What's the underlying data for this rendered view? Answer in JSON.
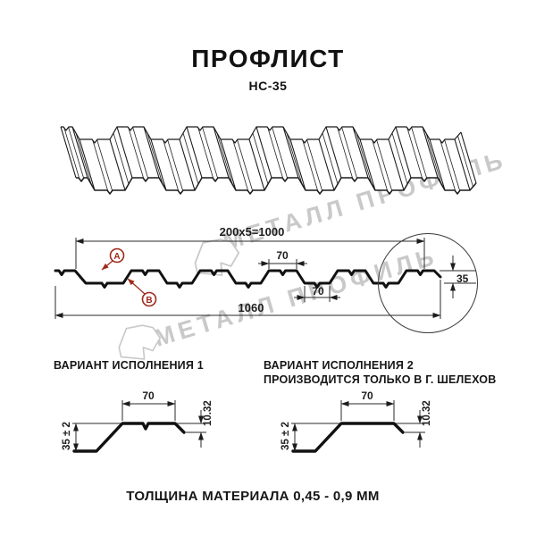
{
  "header": {
    "title": "ПРОФЛИСТ",
    "subtitle": "НС-35"
  },
  "watermark": {
    "text": "МЕТАЛЛ ПРОФИЛЬ",
    "color": "#c9c9c9"
  },
  "cross_section": {
    "dim_top_total": "200x5=1000",
    "dim_rib_top": "70",
    "dim_rib_bottom": "70",
    "dim_bottom_total": "1060",
    "dim_height": "35",
    "marker_a": "А",
    "marker_b": "В",
    "marker_color": "#9e2a1c"
  },
  "variant1": {
    "title": "ВАРИАНТ ИСПОЛНЕНИЯ 1",
    "dim_width": "70",
    "dim_lip": "10.32",
    "dim_height": "35 ± 2"
  },
  "variant2": {
    "title": "ВАРИАНТ ИСПОЛНЕНИЯ 2",
    "subtitle": "ПРОИЗВОДИТСЯ ТОЛЬКО В Г. ШЕЛЕХОВ",
    "dim_width": "70",
    "dim_lip": "10.32",
    "dim_height": "35 ± 2"
  },
  "footer": {
    "note": "ТОЛЩИНА МАТЕРИАЛА 0,45 - 0,9 ММ"
  }
}
